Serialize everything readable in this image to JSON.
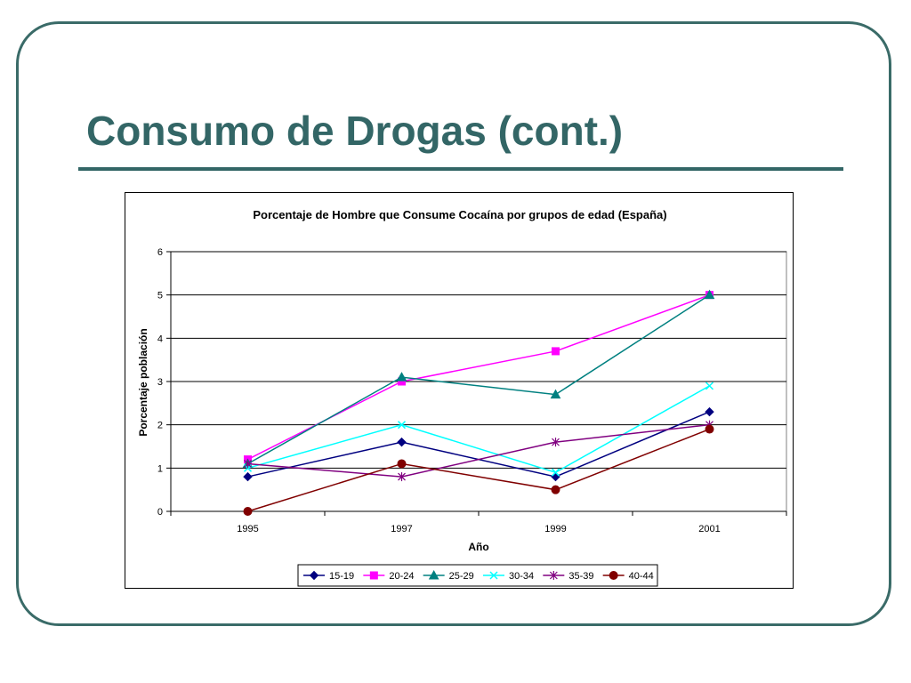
{
  "slide": {
    "title": "Consumo de Drogas (cont.)"
  },
  "colors": {
    "frame": "#3a6b68",
    "title": "#336666"
  },
  "chart_data": {
    "type": "line",
    "title": "Porcentaje de Hombre que Consume Cocaína por grupos de edad (España)",
    "xlabel": "Año",
    "ylabel": "Porcentaje población",
    "categories": [
      "1995",
      "1997",
      "1999",
      "2001"
    ],
    "ylim": [
      0,
      6
    ],
    "yticks": [
      0,
      1,
      2,
      3,
      4,
      5,
      6
    ],
    "grid": true,
    "legend_position": "bottom",
    "series": [
      {
        "name": "15-19",
        "values": [
          0.8,
          1.6,
          0.8,
          2.3
        ],
        "color": "#000080",
        "marker": "diamond"
      },
      {
        "name": "20-24",
        "values": [
          1.2,
          3.0,
          3.7,
          5.0
        ],
        "color": "#ff00ff",
        "marker": "square"
      },
      {
        "name": "25-29",
        "values": [
          1.1,
          3.1,
          2.7,
          5.0
        ],
        "color": "#008080",
        "marker": "triangle"
      },
      {
        "name": "30-34",
        "values": [
          1.0,
          2.0,
          0.9,
          2.9
        ],
        "color": "#00ffff",
        "marker": "x"
      },
      {
        "name": "35-39",
        "values": [
          1.1,
          0.8,
          1.6,
          2.0
        ],
        "color": "#800080",
        "marker": "star"
      },
      {
        "name": "40-44",
        "values": [
          0.0,
          1.1,
          0.5,
          1.9
        ],
        "color": "#800000",
        "marker": "circle"
      }
    ]
  }
}
